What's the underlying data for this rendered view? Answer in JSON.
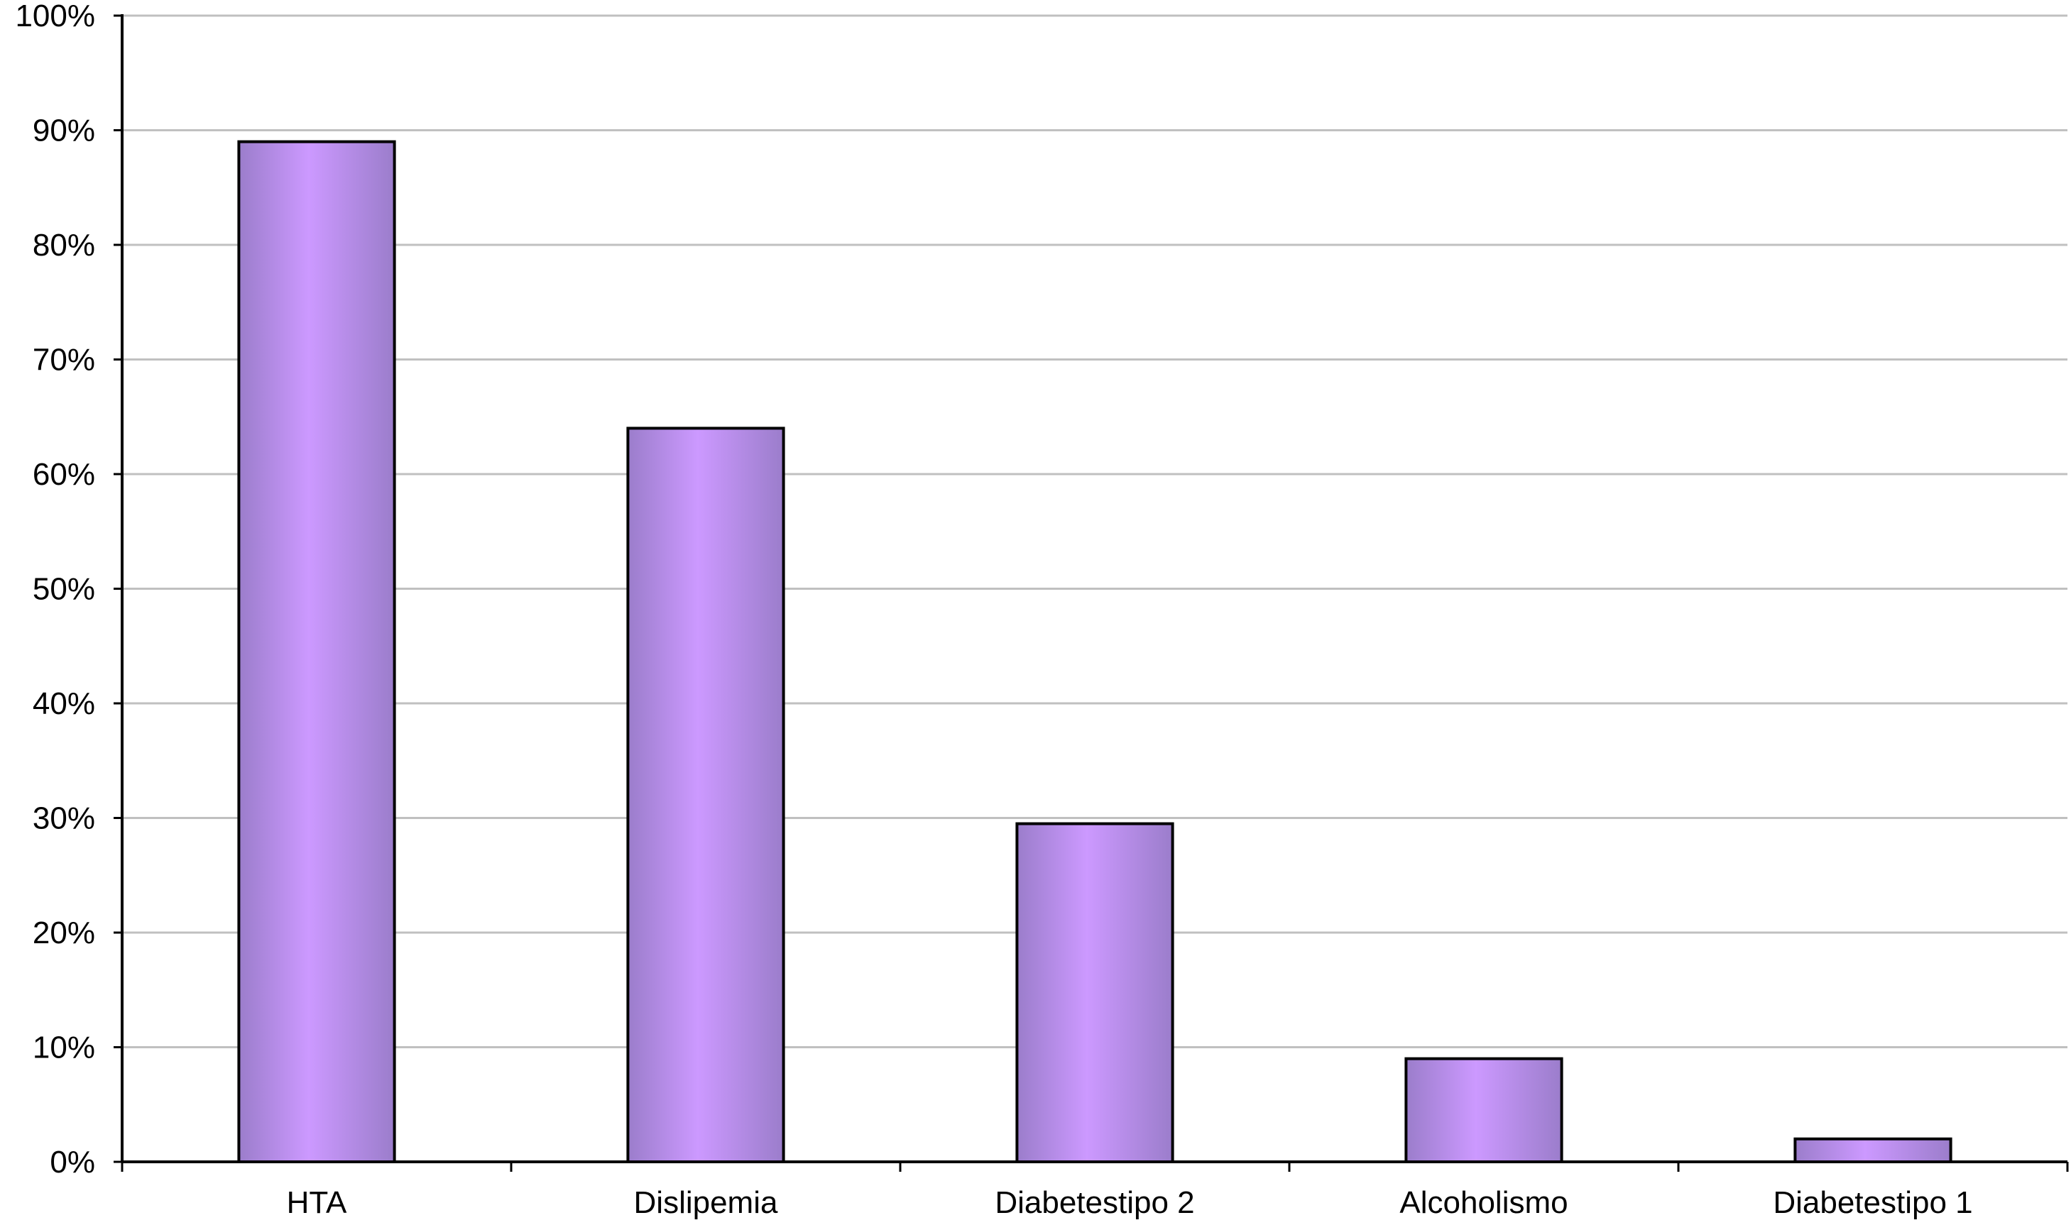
{
  "chart_data": {
    "type": "bar",
    "title": "",
    "xlabel": "",
    "ylabel": "",
    "categories": [
      "HTA",
      "Dislipemia",
      "Diabetestipo 2",
      "Alcoholismo",
      "Diabetestipo 1"
    ],
    "values": [
      89,
      64,
      29.5,
      9,
      2
    ],
    "unit": "%",
    "ylim": [
      0,
      100
    ],
    "yticks": [
      "0%",
      "10%",
      "20%",
      "30%",
      "40%",
      "50%",
      "60%",
      "70%",
      "80%",
      "90%",
      "100%"
    ],
    "grid": true,
    "legend": "none",
    "colors": {
      "bar_edge": "#9b7dcb",
      "bar_center": "#cc99ff",
      "bar_outline": "#000000",
      "grid": "#c0c0c0",
      "axis": "#000000"
    }
  }
}
